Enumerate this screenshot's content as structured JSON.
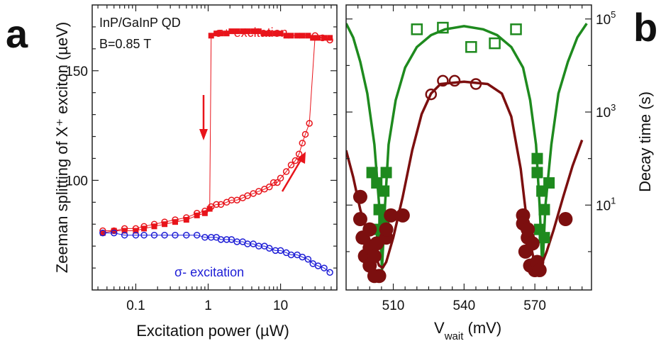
{
  "panel_a": {
    "letter": "a",
    "xlabel": "Excitation power (µW)",
    "ylabel": "Zeeman splitting of X⁺ exciton (µeV)",
    "annot_sample": "InP/GaInP QD",
    "annot_field": "B=0.85 T",
    "annot_sigma_plus": "σ+ excitation",
    "annot_sigma_minus": "σ- excitation",
    "xticks": [
      "0.1",
      "1",
      "10"
    ],
    "yticks": [
      "100",
      "150"
    ]
  },
  "panel_b": {
    "letter": "b",
    "xlabel_main": "V",
    "xlabel_sub": "wait",
    "xlabel_unit": " (mV)",
    "ylabel": "Decay time (s)",
    "xticks": [
      "510",
      "540",
      "570"
    ],
    "yticks_base": [
      "10",
      "10",
      "10"
    ],
    "yticks_exp": [
      "1",
      "3",
      "5"
    ]
  },
  "colors": {
    "red": "#e8141b",
    "blue": "#1d1dd6",
    "green": "#1e8a1e",
    "darkred": "#7c0f0f"
  },
  "chart_data": [
    {
      "type": "scatter",
      "xscale": "log",
      "xlim": [
        0.025,
        60
      ],
      "ylim": [
        50,
        180
      ],
      "grid": false,
      "series": [
        {
          "marker": "filled-square",
          "color": "#e8141b",
          "x": [
            0.035,
            0.05,
            0.07,
            0.1,
            0.13,
            0.18,
            0.25,
            0.35,
            0.5,
            0.7,
            0.9,
            1.05,
            1.1,
            1.3,
            1.5,
            1.8,
            2.1,
            2.5,
            3.0,
            3.5,
            4.2,
            5.0,
            6.0,
            7.0,
            8.5,
            10,
            12,
            14,
            17,
            20,
            24,
            28,
            33,
            40,
            48
          ],
          "y": [
            76,
            77,
            77,
            77,
            78,
            79,
            80,
            81,
            82,
            84,
            85,
            87,
            166,
            167,
            167,
            167,
            168,
            168,
            168,
            168,
            168,
            168,
            167,
            167,
            167,
            167,
            166,
            166,
            166,
            166,
            166,
            165,
            165,
            165,
            165
          ]
        },
        {
          "marker": "open-circle",
          "color": "#e8141b",
          "x": [
            0.035,
            0.05,
            0.07,
            0.1,
            0.13,
            0.18,
            0.25,
            0.35,
            0.5,
            0.7,
            0.9,
            1.1,
            1.3,
            1.5,
            1.8,
            2.1,
            2.5,
            3.0,
            3.5,
            4.2,
            5.0,
            6.0,
            7.0,
            8.0,
            9.0,
            10,
            12,
            14,
            16,
            18,
            20,
            22,
            25,
            30,
            38,
            48
          ],
          "y": [
            77,
            77,
            78,
            78,
            79,
            80,
            81,
            82,
            83,
            85,
            86,
            88,
            89,
            89,
            90,
            91,
            91,
            92,
            93,
            94,
            95,
            96,
            97,
            99,
            99,
            101,
            104,
            107,
            109,
            112,
            117,
            121,
            126,
            166,
            165,
            164
          ]
        },
        {
          "marker": "open-circle",
          "color": "#1d1dd6",
          "x": [
            0.035,
            0.05,
            0.07,
            0.1,
            0.13,
            0.18,
            0.25,
            0.35,
            0.5,
            0.7,
            0.9,
            1.1,
            1.3,
            1.5,
            1.8,
            2.1,
            2.5,
            3.0,
            3.5,
            4.2,
            5.0,
            6.0,
            7.0,
            8.5,
            10,
            12,
            14,
            17,
            20,
            24,
            28,
            33,
            40,
            48
          ],
          "y": [
            76,
            76,
            75,
            75,
            75,
            75,
            75,
            75,
            75,
            75,
            74,
            74,
            74,
            73,
            73,
            73,
            72,
            72,
            71,
            71,
            70,
            70,
            69,
            68,
            68,
            67,
            66,
            66,
            65,
            64,
            62,
            61,
            60,
            58
          ]
        }
      ]
    },
    {
      "type": "scatter",
      "yscale": "log",
      "xlim": [
        490,
        594
      ],
      "ylim": [
        0.15,
        200000
      ],
      "grid": false,
      "series": [
        {
          "marker": "open-square",
          "color": "#1e8a1e",
          "x": [
            520,
            531,
            543,
            553,
            562
          ],
          "y": [
            60000,
            65000,
            25000,
            30000,
            60000
          ]
        },
        {
          "marker": "open-circle",
          "color": "#7c0f0f",
          "x": [
            526,
            531,
            536,
            545
          ],
          "y": [
            2400,
            4700,
            4700,
            4000
          ]
        },
        {
          "marker": "filled-square",
          "color": "#1e8a1e",
          "x": [
            501,
            503,
            503,
            504,
            505,
            506,
            506,
            507,
            571,
            571,
            572,
            573,
            574,
            574,
            576
          ],
          "y": [
            50,
            30,
            3,
            8,
            2,
            20,
            5,
            50,
            100,
            50,
            3,
            20,
            8,
            2,
            30
          ]
        },
        {
          "marker": "filled-circle",
          "color": "#7c0f0f",
          "x": [
            496,
            496,
            497,
            498,
            500,
            500,
            500,
            502,
            502,
            503,
            504,
            507,
            507,
            509,
            514,
            565,
            565,
            566,
            567,
            567,
            568,
            569,
            570,
            571,
            572,
            583
          ],
          "y": [
            15,
            5,
            2,
            0.8,
            0.5,
            1.2,
            3,
            0.3,
            0.8,
            1.5,
            0.3,
            2,
            3,
            6,
            6,
            6,
            4,
            1,
            2,
            3,
            0.5,
            1.5,
            0.4,
            0.6,
            0.4,
            5
          ]
        },
        {
          "marker": "line",
          "color": "#1e8a1e",
          "x": [
            490,
            493,
            496,
            499,
            502,
            504,
            505.2,
            506.5,
            508,
            511,
            515,
            520,
            526,
            532,
            540,
            548,
            554,
            560,
            565,
            568,
            570.5,
            572,
            573.2,
            574.5,
            577,
            580,
            584,
            588,
            592
          ],
          "y": [
            80000,
            40000,
            12000,
            2500,
            200,
            10,
            0.4,
            10,
            200,
            1800,
            9000,
            25000,
            45000,
            60000,
            70000,
            60000,
            45000,
            25000,
            9000,
            1800,
            200,
            10,
            0.4,
            10,
            200,
            2500,
            12000,
            40000,
            80000
          ]
        },
        {
          "marker": "line",
          "color": "#7c0f0f",
          "x": [
            490,
            493,
            496,
            499,
            502,
            504,
            505.5,
            507,
            510,
            514,
            518,
            522,
            526,
            530,
            540,
            550,
            556,
            560,
            564,
            567,
            570,
            571.5,
            573,
            575,
            578,
            582,
            586,
            590
          ],
          "y": [
            150,
            40,
            8,
            2.5,
            0.9,
            0.5,
            0.45,
            0.6,
            2,
            15,
            150,
            900,
            2500,
            4000,
            4500,
            4000,
            2500,
            800,
            60,
            3,
            0.5,
            0.45,
            0.55,
            1,
            3,
            15,
            70,
            250
          ]
        }
      ]
    }
  ]
}
